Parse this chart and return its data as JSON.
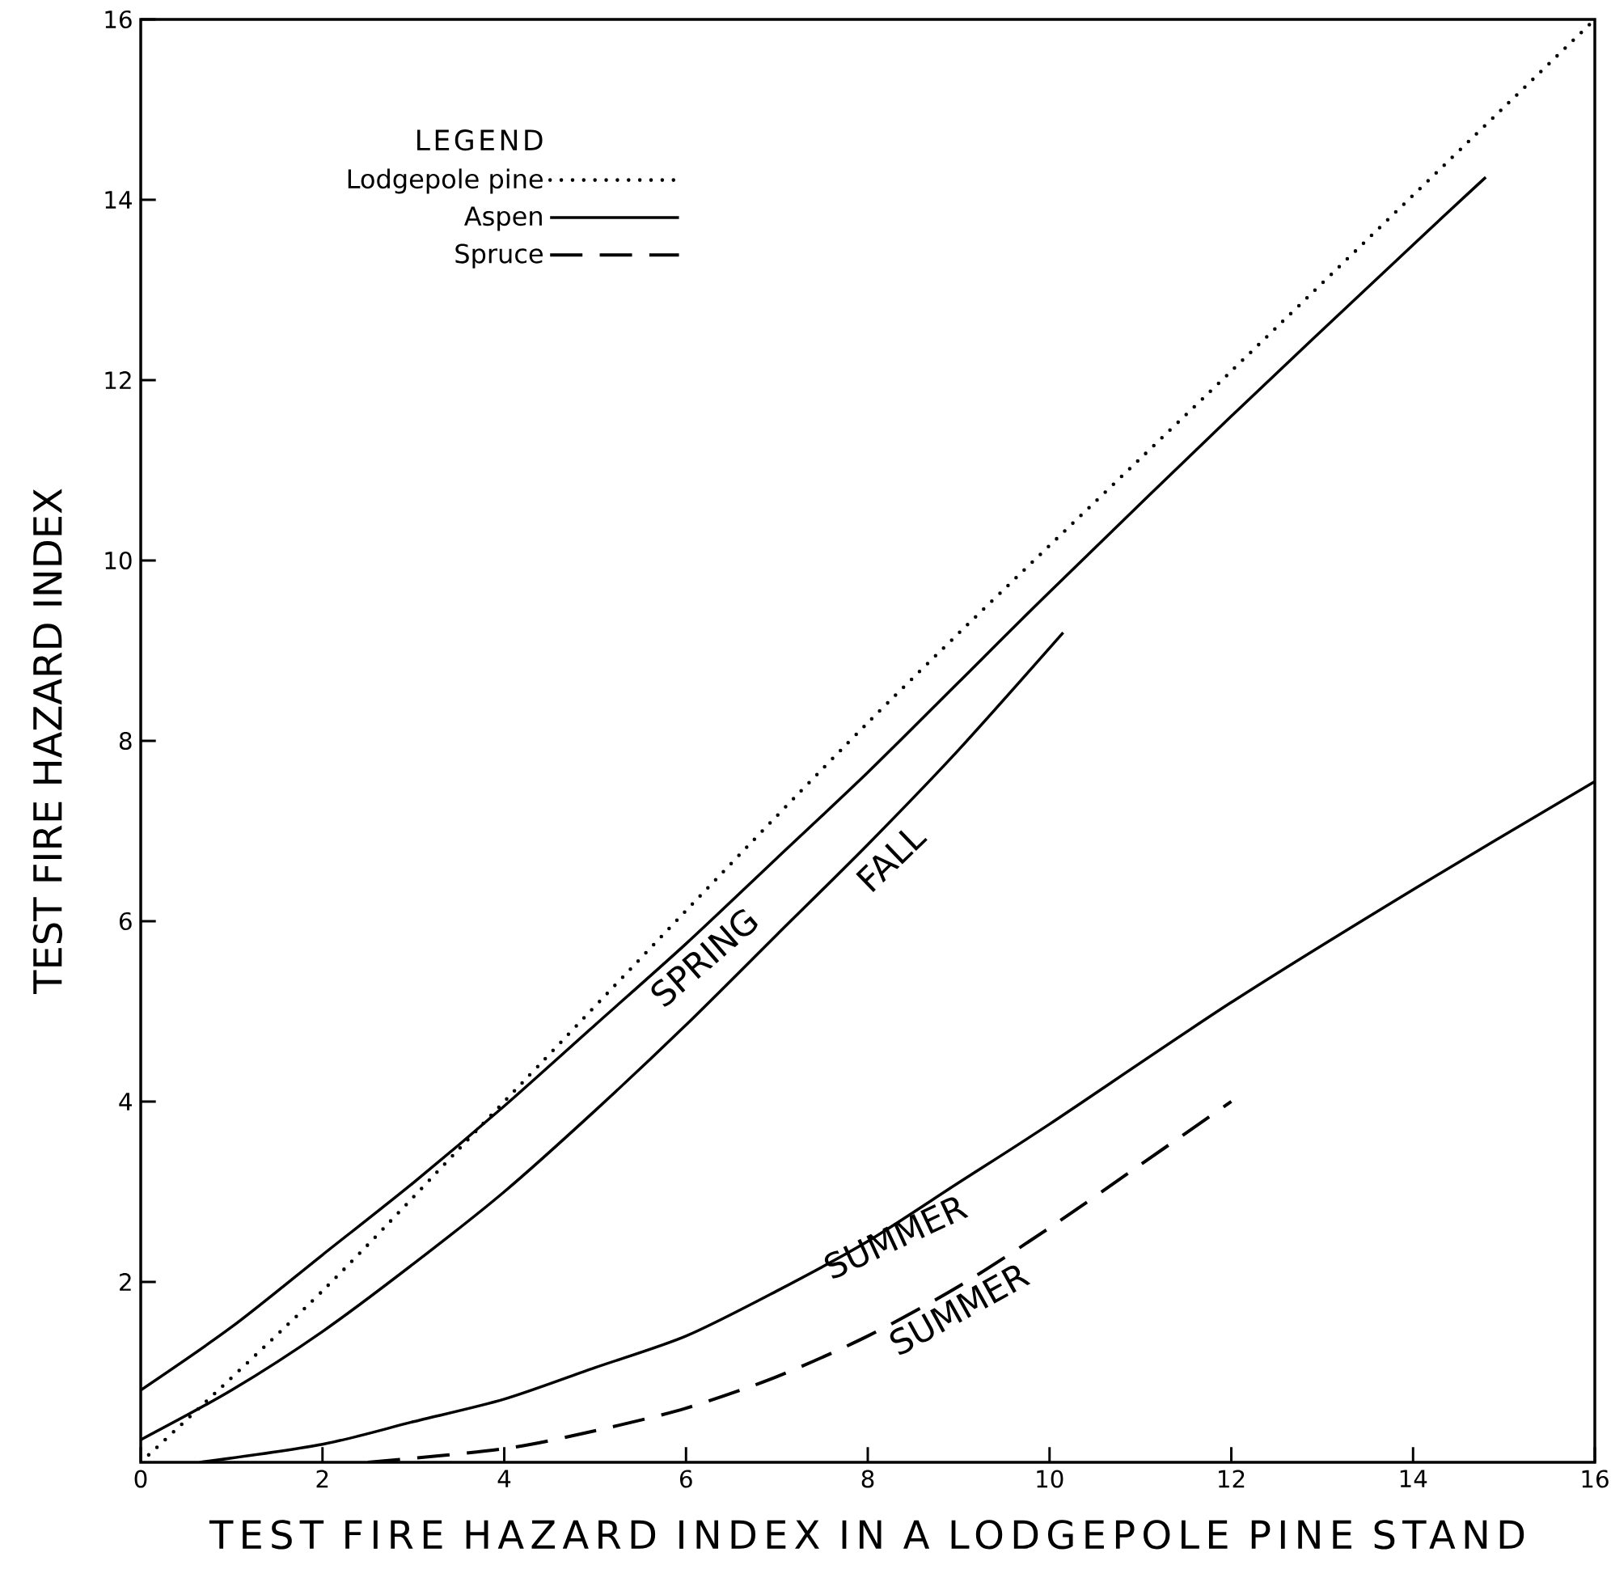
{
  "chart_data": {
    "type": "line",
    "xlabel": "TEST FIRE HAZARD INDEX IN A LODGEPOLE PINE STAND",
    "ylabel": "TEST FIRE HAZARD INDEX",
    "legend_title": "LEGEND",
    "legend": "top left",
    "grid": false,
    "xlim": [
      0,
      16
    ],
    "ylim": [
      0,
      16
    ],
    "xticks": [
      0,
      2,
      4,
      6,
      8,
      10,
      12,
      14,
      16
    ],
    "yticks": [
      2,
      4,
      6,
      8,
      10,
      12,
      14,
      16
    ],
    "series": [
      {
        "name": "Lodgepole pine",
        "color": "#000000",
        "line_style": "dotted",
        "x": [
          0,
          2,
          4,
          8,
          12,
          16
        ],
        "values": [
          0,
          1.9,
          4,
          8.2,
          12.1,
          16
        ]
      },
      {
        "name": "Aspen",
        "color": "#000000",
        "line_style": "solid",
        "x": [
          0,
          1,
          2,
          3,
          4,
          5,
          6,
          7,
          8,
          9,
          10,
          12,
          14,
          14.8
        ],
        "values": [
          0.8,
          1.5,
          2.3,
          3.1,
          3.95,
          4.85,
          5.75,
          6.7,
          7.65,
          8.65,
          9.65,
          11.6,
          13.5,
          14.25
        ]
      },
      {
        "color": "#000000",
        "line_style": "solid",
        "x": [
          0,
          1,
          2,
          3,
          4,
          5,
          6,
          7,
          8,
          9,
          10.15
        ],
        "values": [
          0.25,
          0.8,
          1.45,
          2.2,
          3.0,
          3.9,
          4.85,
          5.85,
          6.85,
          7.9,
          9.2
        ]
      },
      {
        "color": "#000000",
        "line_style": "solid",
        "x": [
          0.65,
          2,
          3,
          4,
          5,
          6,
          7,
          8,
          9,
          10,
          12,
          14,
          16
        ],
        "values": [
          0,
          0.2,
          0.45,
          0.7,
          1.05,
          1.4,
          1.9,
          2.45,
          3.1,
          3.75,
          5.1,
          6.35,
          7.55
        ]
      },
      {
        "name": "Spruce",
        "color": "#000000",
        "line_style": "dashed",
        "x": [
          2.5,
          4,
          5,
          6,
          7,
          8,
          9,
          10,
          11,
          12
        ],
        "values": [
          0,
          0.15,
          0.35,
          0.6,
          0.95,
          1.4,
          1.95,
          2.6,
          3.3,
          4.0
        ]
      }
    ],
    "annotations": [
      "SPRING",
      "FALL",
      "SUMMER",
      "SUMMER"
    ]
  }
}
